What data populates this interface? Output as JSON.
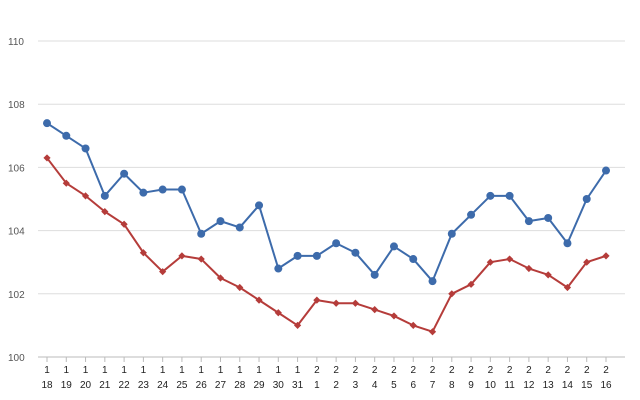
{
  "chart_data": {
    "type": "line",
    "ylim": [
      100,
      110
    ],
    "yticks": [
      100,
      102,
      104,
      106,
      108,
      110
    ],
    "grid": true,
    "categories": [
      {
        "month": "1",
        "day": "18"
      },
      {
        "month": "1",
        "day": "19"
      },
      {
        "month": "1",
        "day": "20"
      },
      {
        "month": "1",
        "day": "21"
      },
      {
        "month": "1",
        "day": "22"
      },
      {
        "month": "1",
        "day": "23"
      },
      {
        "month": "1",
        "day": "24"
      },
      {
        "month": "1",
        "day": "25"
      },
      {
        "month": "1",
        "day": "26"
      },
      {
        "month": "1",
        "day": "27"
      },
      {
        "month": "1",
        "day": "28"
      },
      {
        "month": "1",
        "day": "29"
      },
      {
        "month": "1",
        "day": "30"
      },
      {
        "month": "1",
        "day": "31"
      },
      {
        "month": "2",
        "day": "1"
      },
      {
        "month": "2",
        "day": "2"
      },
      {
        "month": "2",
        "day": "3"
      },
      {
        "month": "2",
        "day": "4"
      },
      {
        "month": "2",
        "day": "5"
      },
      {
        "month": "2",
        "day": "6"
      },
      {
        "month": "2",
        "day": "7"
      },
      {
        "month": "2",
        "day": "8"
      },
      {
        "month": "2",
        "day": "9"
      },
      {
        "month": "2",
        "day": "10"
      },
      {
        "month": "2",
        "day": "11"
      },
      {
        "month": "2",
        "day": "12"
      },
      {
        "month": "2",
        "day": "13"
      },
      {
        "month": "2",
        "day": "14"
      },
      {
        "month": "2",
        "day": "15"
      },
      {
        "month": "2",
        "day": "16"
      }
    ],
    "series": [
      {
        "color": "#3d6bab",
        "marker": "circle",
        "values": [
          107.4,
          107.0,
          106.6,
          105.1,
          105.8,
          105.2,
          105.3,
          105.3,
          103.9,
          104.3,
          104.1,
          104.8,
          102.8,
          103.2,
          103.2,
          103.6,
          103.3,
          102.6,
          103.5,
          103.1,
          102.4,
          103.9,
          104.5,
          105.1,
          105.1,
          104.3,
          104.4,
          103.6,
          105.0,
          105.9
        ]
      },
      {
        "color": "#b53c3a",
        "marker": "diamond",
        "values": [
          106.3,
          105.5,
          105.1,
          104.6,
          104.2,
          103.3,
          102.7,
          103.2,
          103.1,
          102.5,
          102.2,
          101.8,
          101.4,
          101.0,
          101.8,
          101.7,
          101.7,
          101.5,
          101.3,
          101.0,
          100.8,
          102.0,
          102.3,
          103.0,
          103.1,
          102.8,
          102.6,
          102.2,
          103.0,
          103.2
        ]
      }
    ],
    "colors": {
      "grid": "#dddddd",
      "axis": "#bbbbbb"
    }
  }
}
